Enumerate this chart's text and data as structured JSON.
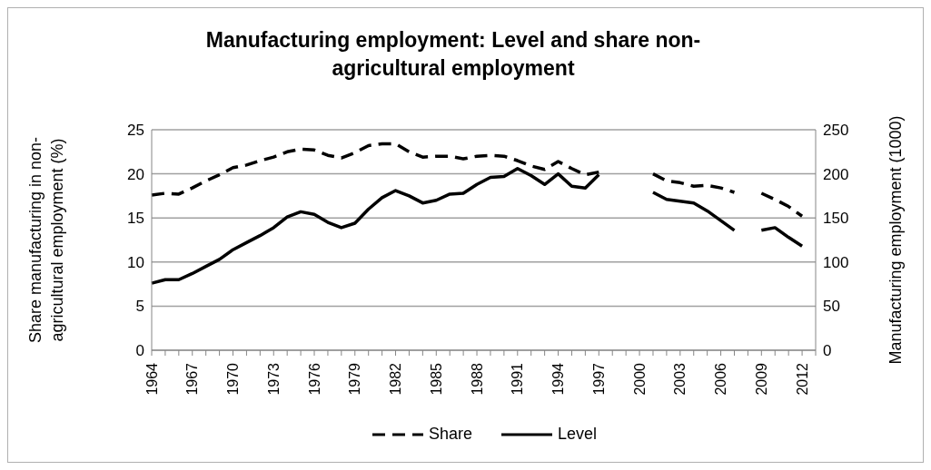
{
  "chart_data": {
    "type": "line",
    "title": "Manufacturing employment: Level and share non-agricultural employment",
    "ylabel": "Share manufacturing in non-agricultural employment (%)",
    "y2label": "Manufacturing employment (1000)",
    "categories": [
      "1964",
      null,
      null,
      "1967",
      null,
      null,
      "1970",
      null,
      null,
      "1973",
      null,
      null,
      "1976",
      null,
      null,
      "1979",
      null,
      null,
      "1982",
      null,
      null,
      "1985",
      null,
      null,
      "1988",
      null,
      null,
      "1991",
      null,
      null,
      "1994",
      null,
      null,
      "1997",
      null,
      null,
      "2000",
      null,
      null,
      "2003",
      null,
      null,
      "2006",
      null,
      null,
      "2009",
      null,
      null,
      "2012",
      null
    ],
    "series": [
      {
        "name": "Share",
        "color": "#000000",
        "line_style": "dashed",
        "values": [
          17.6,
          17.8,
          17.7,
          18.4,
          19.2,
          19.9,
          20.7,
          21.0,
          21.5,
          21.9,
          22.5,
          22.8,
          22.7,
          22.1,
          21.8,
          22.4,
          23.2,
          23.4,
          23.4,
          22.5,
          21.9,
          22.0,
          22.0,
          21.7,
          22.0,
          22.1,
          22.0,
          21.5,
          20.9,
          20.5,
          21.4,
          20.6,
          19.9,
          20.2,
          null,
          null,
          null,
          20.0,
          19.2,
          19.0,
          18.6,
          18.7,
          18.4,
          17.9,
          null,
          17.8,
          17.1,
          16.3,
          15.2,
          null
        ]
      },
      {
        "name": "Level",
        "color": "#000000",
        "line_style": "solid",
        "axis": "y2",
        "values": [
          76,
          80,
          80,
          87,
          95,
          103,
          114,
          122,
          130,
          139,
          151,
          157,
          154,
          145,
          139,
          144,
          160,
          173,
          181,
          175,
          167,
          170,
          177,
          178,
          188,
          196,
          197,
          206,
          198,
          188,
          200,
          186,
          184,
          199,
          null,
          null,
          null,
          179,
          171,
          169,
          167,
          158,
          147,
          136,
          null,
          136,
          139,
          128,
          118,
          null
        ]
      }
    ],
    "ylim": [
      0,
      25
    ],
    "yticks": [
      0,
      5,
      10,
      15,
      20,
      25
    ],
    "y2lim": [
      0,
      250
    ],
    "y2ticks": [
      0,
      50,
      100,
      150,
      200,
      250
    ],
    "grid": "y",
    "legend": "bottom"
  }
}
